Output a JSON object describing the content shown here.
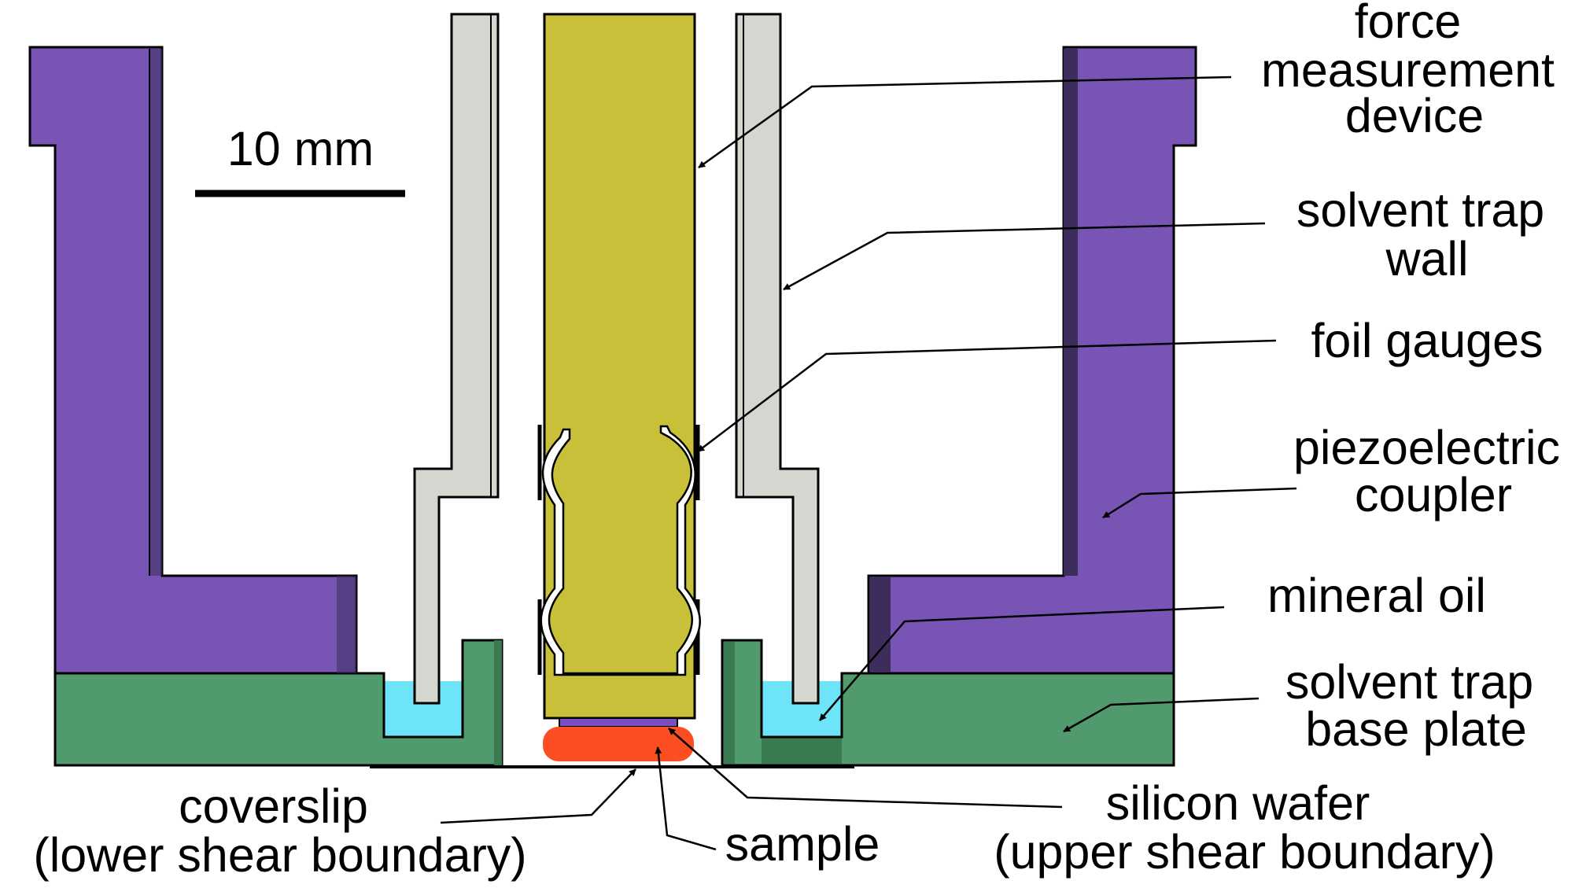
{
  "scale_bar": {
    "label": "10 mm"
  },
  "labels": {
    "force_measurement_device": [
      "force",
      "measurement",
      "device"
    ],
    "solvent_trap_wall": [
      "solvent trap",
      "wall"
    ],
    "foil_gauges": [
      "foil gauges"
    ],
    "piezoelectric_coupler": [
      "piezoelectric",
      "coupler"
    ],
    "mineral_oil": [
      "mineral oil"
    ],
    "solvent_trap_base_plate": [
      "solvent trap",
      "base plate"
    ],
    "coverslip": [
      "coverslip",
      "(lower shear boundary)"
    ],
    "sample": [
      "sample"
    ],
    "silicon_wafer": [
      "silicon wafer",
      "(upper shear boundary)"
    ]
  },
  "colors": {
    "piezo": "#7855b5",
    "piezo_shadow": "#3d2d5c",
    "base_plate": "#509a6d",
    "base_plate_dark": "#3a7a50",
    "trap_wall": "#d5d6d0",
    "force_device": "#c8c038",
    "mineral_oil": "#6de4f8",
    "sample": "#fc4e22",
    "wafer": "#7b4fc3",
    "outline": "#000000"
  }
}
